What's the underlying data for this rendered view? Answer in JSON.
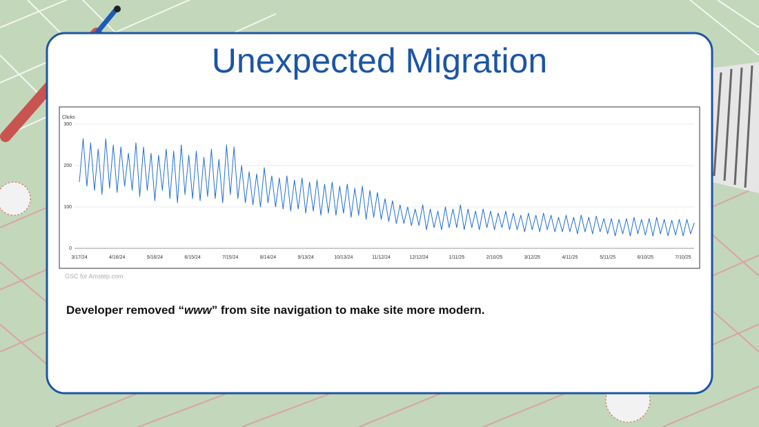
{
  "title": "Unexpected Migration",
  "chart_data": {
    "type": "line",
    "y_label": "Clicks",
    "color": "#1f6fd1",
    "grid": true,
    "xlim": [
      0,
      490
    ],
    "ylim": [
      0,
      300
    ],
    "yticks": [
      0,
      100,
      200,
      300
    ],
    "xticks": [
      {
        "value": 0,
        "label": "3/17/24"
      },
      {
        "value": 30,
        "label": "4/16/24"
      },
      {
        "value": 60,
        "label": "5/16/24"
      },
      {
        "value": 90,
        "label": "6/15/24"
      },
      {
        "value": 120,
        "label": "7/15/24"
      },
      {
        "value": 150,
        "label": "8/14/24"
      },
      {
        "value": 180,
        "label": "9/13/24"
      },
      {
        "value": 210,
        "label": "10/13/24"
      },
      {
        "value": 240,
        "label": "11/12/24"
      },
      {
        "value": 270,
        "label": "12/12/24"
      },
      {
        "value": 300,
        "label": "1/11/25"
      },
      {
        "value": 330,
        "label": "2/10/25"
      },
      {
        "value": 360,
        "label": "3/12/25"
      },
      {
        "value": 390,
        "label": "4/11/25"
      },
      {
        "value": 420,
        "label": "5/11/25"
      },
      {
        "value": 450,
        "label": "6/10/25"
      },
      {
        "value": 480,
        "label": "7/10/25"
      }
    ],
    "x": [
      0,
      3,
      6,
      9,
      12,
      15,
      18,
      21,
      24,
      27,
      30,
      33,
      36,
      39,
      42,
      45,
      48,
      51,
      54,
      57,
      60,
      63,
      66,
      69,
      72,
      75,
      78,
      81,
      84,
      87,
      90,
      93,
      96,
      99,
      102,
      105,
      108,
      111,
      114,
      117,
      120,
      123,
      126,
      129,
      132,
      135,
      138,
      141,
      144,
      147,
      150,
      153,
      156,
      159,
      162,
      165,
      168,
      171,
      174,
      177,
      180,
      183,
      186,
      189,
      192,
      195,
      198,
      201,
      204,
      207,
      210,
      213,
      216,
      219,
      222,
      225,
      228,
      231,
      234,
      237,
      240,
      243,
      246,
      249,
      252,
      255,
      258,
      261,
      264,
      267,
      270,
      273,
      276,
      279,
      282,
      285,
      288,
      291,
      294,
      297,
      300,
      303,
      306,
      309,
      312,
      315,
      318,
      321,
      324,
      327,
      330,
      333,
      336,
      339,
      342,
      345,
      348,
      351,
      354,
      357,
      360,
      363,
      366,
      369,
      372,
      375,
      378,
      381,
      384,
      387,
      390,
      393,
      396,
      399,
      402,
      405,
      408,
      411,
      414,
      417,
      420,
      423,
      426,
      429,
      432,
      435,
      438,
      441,
      444,
      447,
      450,
      453,
      456,
      459,
      462,
      465,
      468,
      471,
      474,
      477,
      480,
      483,
      486,
      489
    ],
    "values": [
      160,
      265,
      150,
      255,
      140,
      240,
      130,
      265,
      145,
      250,
      135,
      245,
      150,
      230,
      140,
      255,
      125,
      245,
      140,
      230,
      115,
      225,
      140,
      240,
      120,
      235,
      110,
      250,
      130,
      225,
      120,
      235,
      115,
      220,
      125,
      240,
      120,
      215,
      110,
      250,
      130,
      245,
      120,
      200,
      110,
      185,
      105,
      180,
      100,
      195,
      110,
      175,
      100,
      170,
      95,
      175,
      90,
      165,
      95,
      170,
      85,
      160,
      90,
      165,
      80,
      155,
      85,
      160,
      80,
      150,
      85,
      155,
      75,
      145,
      80,
      150,
      70,
      140,
      75,
      135,
      70,
      120,
      65,
      115,
      60,
      105,
      60,
      100,
      55,
      95,
      55,
      105,
      45,
      95,
      50,
      90,
      45,
      100,
      50,
      95,
      50,
      105,
      45,
      95,
      50,
      90,
      45,
      95,
      50,
      90,
      45,
      85,
      50,
      90,
      45,
      85,
      45,
      80,
      40,
      85,
      45,
      80,
      40,
      85,
      45,
      80,
      40,
      75,
      40,
      80,
      40,
      75,
      35,
      80,
      40,
      75,
      35,
      78,
      40,
      72,
      35,
      72,
      30,
      70,
      35,
      72,
      30,
      75,
      35,
      70,
      32,
      72,
      30,
      75,
      35,
      70,
      30,
      68,
      32,
      70,
      30,
      70,
      35,
      62
    ]
  },
  "source": "GSC for Amstep.com",
  "note": {
    "before": "Developer removed “",
    "emphasis": "www",
    "after": "” from site navigation to make site more modern."
  }
}
